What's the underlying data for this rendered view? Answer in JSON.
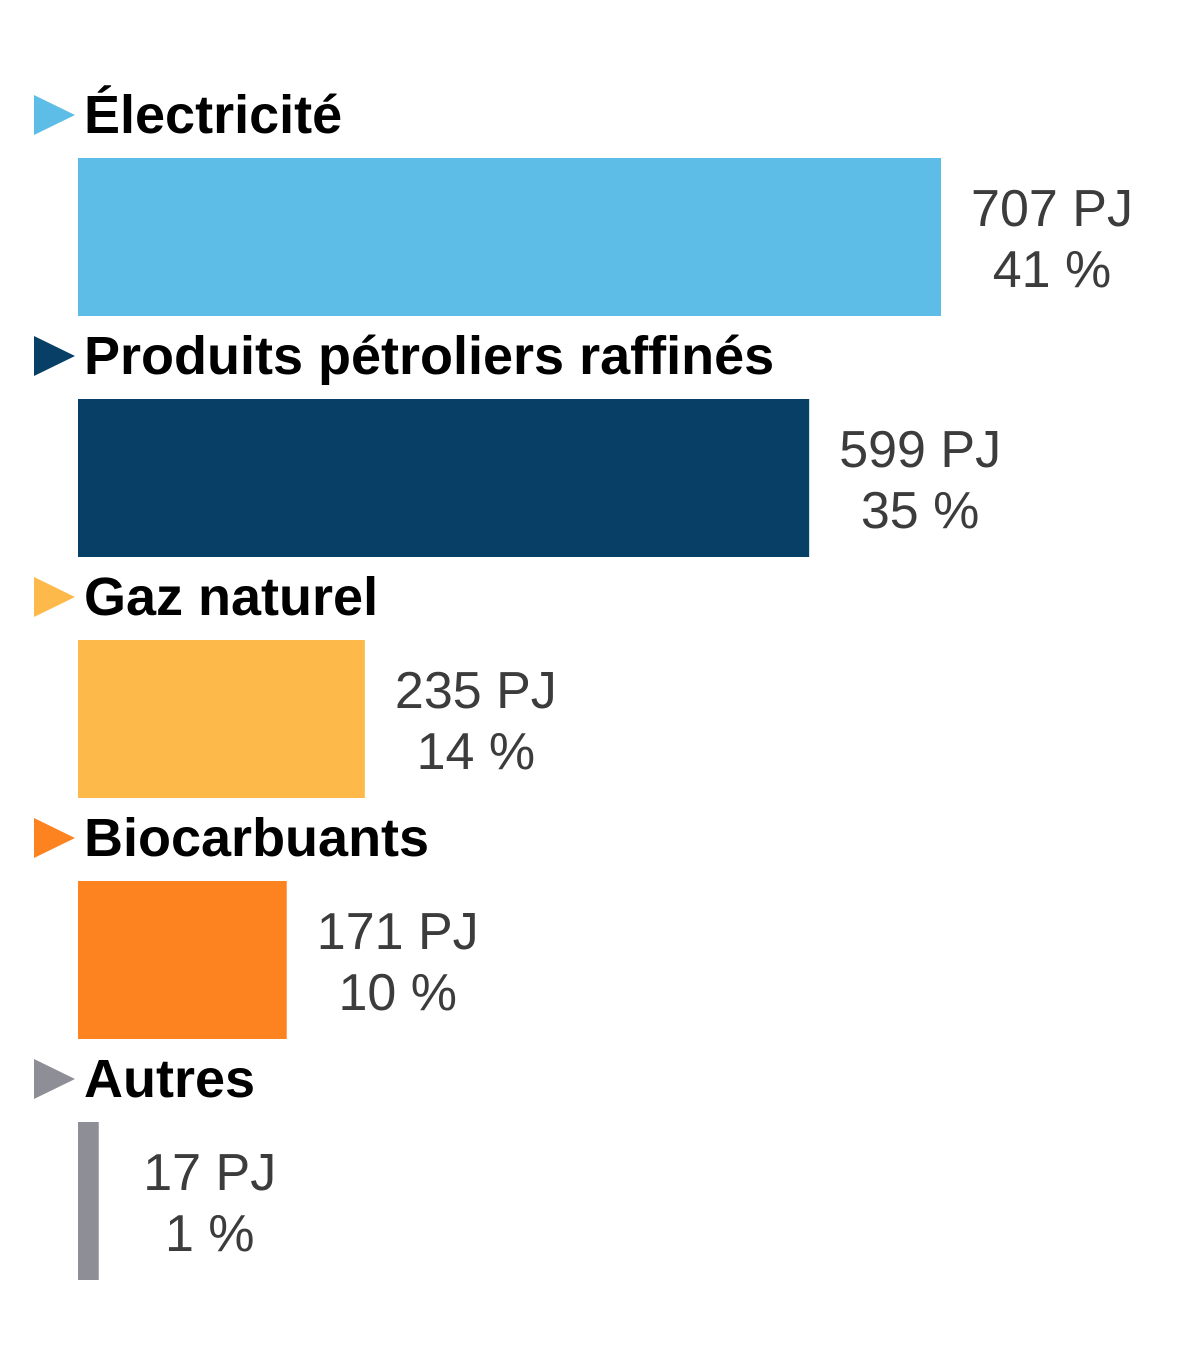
{
  "chart_data": {
    "type": "bar",
    "orientation": "horizontal",
    "title": "",
    "xlabel": "",
    "ylabel": "",
    "unit": "PJ",
    "categories": [
      "Électricité",
      "Produits pétroliers raffinés",
      "Gaz naturel",
      "Biocarbuants",
      "Autres"
    ],
    "values": [
      707,
      599,
      235,
      171,
      17
    ],
    "value_labels": [
      "707 PJ",
      "599 PJ",
      "235 PJ",
      "171 PJ",
      "17 PJ"
    ],
    "percent_labels": [
      "41 %",
      "35 %",
      "14 %",
      "10 %",
      "1 %"
    ],
    "percents": [
      41,
      35,
      14,
      10,
      1
    ],
    "colors": [
      "#5ebde6",
      "#083f66",
      "#fdb94a",
      "#fd8320",
      "#8e8e96"
    ],
    "xlim": [
      0,
      707
    ],
    "grid": false,
    "legend": "none"
  }
}
